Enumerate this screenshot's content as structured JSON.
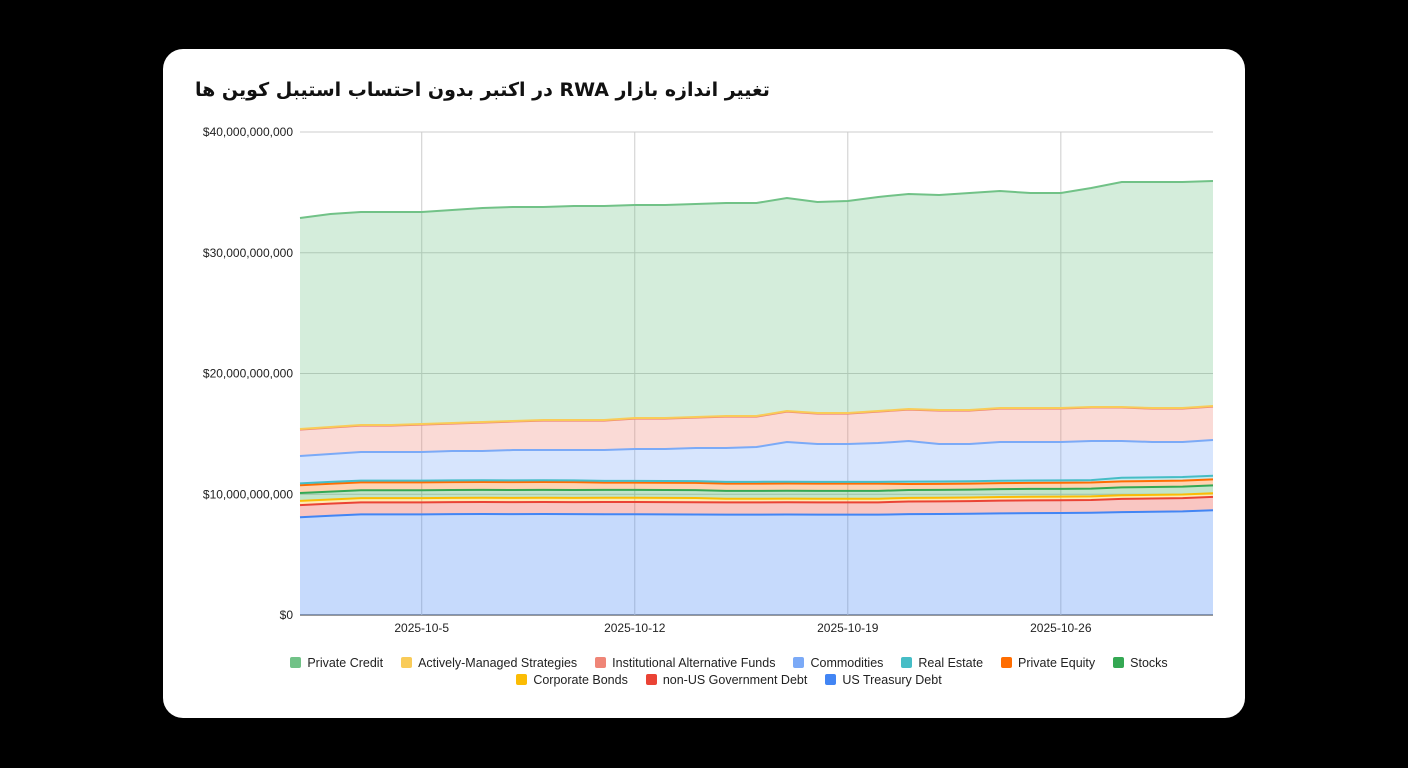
{
  "chart_data": {
    "type": "area",
    "stacked": true,
    "title": "تغییر اندازه بازار RWA در اکتبر بدون احتساب استیبل کوین ها",
    "xlabel": "",
    "ylabel": "",
    "ylim": [
      0,
      40000000000
    ],
    "yticks": [
      {
        "value": 0,
        "label": "$0"
      },
      {
        "value": 10000000000,
        "label": "$10,000,000,000"
      },
      {
        "value": 20000000000,
        "label": "$20,000,000,000"
      },
      {
        "value": 30000000000,
        "label": "$30,000,000,000"
      },
      {
        "value": 40000000000,
        "label": "$40,000,000,000"
      }
    ],
    "xticks": [
      "2025-10-5",
      "2025-10-12",
      "2025-10-19",
      "2025-10-26"
    ],
    "grid": true,
    "legend_position": "bottom",
    "categories": [
      "2025-10-1",
      "2025-10-2",
      "2025-10-3",
      "2025-10-4",
      "2025-10-5",
      "2025-10-6",
      "2025-10-7",
      "2025-10-8",
      "2025-10-9",
      "2025-10-10",
      "2025-10-11",
      "2025-10-12",
      "2025-10-13",
      "2025-10-14",
      "2025-10-15",
      "2025-10-16",
      "2025-10-17",
      "2025-10-18",
      "2025-10-19",
      "2025-10-20",
      "2025-10-21",
      "2025-10-22",
      "2025-10-23",
      "2025-10-24",
      "2025-10-25",
      "2025-10-26",
      "2025-10-27",
      "2025-10-28",
      "2025-10-29",
      "2025-10-30",
      "2025-10-31"
    ],
    "series": [
      {
        "name": "US Treasury Debt",
        "color": "#4285f4",
        "values": [
          8100000000.0,
          8220000000.0,
          8330000000.0,
          8330000000.0,
          8330000000.0,
          8350000000.0,
          8360000000.0,
          8350000000.0,
          8360000000.0,
          8350000000.0,
          8340000000.0,
          8340000000.0,
          8330000000.0,
          8320000000.0,
          8310000000.0,
          8310000000.0,
          8320000000.0,
          8310000000.0,
          8310000000.0,
          8310000000.0,
          8350000000.0,
          8360000000.0,
          8380000000.0,
          8420000000.0,
          8440000000.0,
          8450000000.0,
          8470000000.0,
          8520000000.0,
          8550000000.0,
          8580000000.0,
          8680000000.0
        ]
      },
      {
        "name": "non-US Government Debt",
        "color": "#ea4335",
        "values": [
          1000000000.0,
          1000000000.0,
          1000000000.0,
          1000000000.0,
          1000000000.0,
          1000000000.0,
          1000000000.0,
          1000000000.0,
          1000000000.0,
          1000000000.0,
          1020000000.0,
          1020000000.0,
          1020000000.0,
          1020000000.0,
          1020000000.0,
          1020000000.0,
          1020000000.0,
          1020000000.0,
          1020000000.0,
          1020000000.0,
          1050000000.0,
          1050000000.0,
          1050000000.0,
          1050000000.0,
          1050000000.0,
          1050000000.0,
          1050000000.0,
          1100000000.0,
          1100000000.0,
          1100000000.0,
          1100000000.0
        ]
      },
      {
        "name": "Corporate Bonds",
        "color": "#fbbc04",
        "values": [
          350000000.0,
          350000000.0,
          350000000.0,
          350000000.0,
          350000000.0,
          350000000.0,
          350000000.0,
          350000000.0,
          350000000.0,
          350000000.0,
          350000000.0,
          350000000.0,
          350000000.0,
          350000000.0,
          300000000.0,
          300000000.0,
          300000000.0,
          300000000.0,
          300000000.0,
          300000000.0,
          300000000.0,
          300000000.0,
          300000000.0,
          300000000.0,
          300000000.0,
          300000000.0,
          300000000.0,
          300000000.0,
          300000000.0,
          300000000.0,
          300000000.0
        ]
      },
      {
        "name": "Stocks",
        "color": "#34a853",
        "values": [
          650000000.0,
          650000000.0,
          650000000.0,
          650000000.0,
          650000000.0,
          650000000.0,
          650000000.0,
          650000000.0,
          650000000.0,
          650000000.0,
          650000000.0,
          650000000.0,
          650000000.0,
          650000000.0,
          650000000.0,
          650000000.0,
          650000000.0,
          650000000.0,
          650000000.0,
          650000000.0,
          650000000.0,
          650000000.0,
          650000000.0,
          650000000.0,
          650000000.0,
          650000000.0,
          650000000.0,
          650000000.0,
          650000000.0,
          650000000.0,
          650000000.0
        ]
      },
      {
        "name": "Private Equity",
        "color": "#ff6d01",
        "values": [
          650000000.0,
          650000000.0,
          650000000.0,
          650000000.0,
          650000000.0,
          650000000.0,
          650000000.0,
          650000000.0,
          650000000.0,
          650000000.0,
          600000000.0,
          600000000.0,
          600000000.0,
          600000000.0,
          600000000.0,
          600000000.0,
          600000000.0,
          600000000.0,
          600000000.0,
          600000000.0,
          500000000.0,
          500000000.0,
          500000000.0,
          500000000.0,
          500000000.0,
          500000000.0,
          500000000.0,
          500000000.0,
          500000000.0,
          500000000.0,
          500000000.0
        ]
      },
      {
        "name": "Real Estate",
        "color": "#46bdc6",
        "values": [
          150000000.0,
          150000000.0,
          150000000.0,
          150000000.0,
          150000000.0,
          150000000.0,
          150000000.0,
          150000000.0,
          150000000.0,
          150000000.0,
          150000000.0,
          150000000.0,
          150000000.0,
          150000000.0,
          150000000.0,
          150000000.0,
          150000000.0,
          150000000.0,
          150000000.0,
          150000000.0,
          200000000.0,
          200000000.0,
          200000000.0,
          200000000.0,
          200000000.0,
          200000000.0,
          200000000.0,
          300000000.0,
          300000000.0,
          300000000.0,
          300000000.0
        ]
      },
      {
        "name": "Commodities",
        "color": "#7baaf7",
        "values": [
          2270000000.0,
          2310000000.0,
          2370000000.0,
          2370000000.0,
          2370000000.0,
          2430000000.0,
          2420000000.0,
          2510000000.0,
          2500000000.0,
          2510000000.0,
          2550000000.0,
          2640000000.0,
          2650000000.0,
          2740000000.0,
          2800000000.0,
          2880000000.0,
          3290000000.0,
          3130000000.0,
          3130000000.0,
          3210000000.0,
          3360000000.0,
          3100000000.0,
          3080000000.0,
          3210000000.0,
          3190000000.0,
          3180000000.0,
          3240000000.0,
          3040000000.0,
          2930000000.0,
          2900000000.0,
          2960000000.0
        ]
      },
      {
        "name": "Institutional Alternative Funds",
        "color": "#ef8577",
        "values": [
          2180000000.0,
          2190000000.0,
          2180000000.0,
          2180000000.0,
          2270000000.0,
          2270000000.0,
          2350000000.0,
          2360000000.0,
          2440000000.0,
          2440000000.0,
          2440000000.0,
          2510000000.0,
          2510000000.0,
          2520000000.0,
          2600000000.0,
          2520000000.0,
          2510000000.0,
          2520000000.0,
          2520000000.0,
          2600000000.0,
          2600000000.0,
          2770000000.0,
          2770000000.0,
          2760000000.0,
          2760000000.0,
          2760000000.0,
          2770000000.0,
          2770000000.0,
          2760000000.0,
          2760000000.0,
          2770000000.0
        ]
      },
      {
        "name": "Actively-Managed Strategies",
        "color": "#f9cb58",
        "values": [
          50000000.0,
          50000000.0,
          50000000.0,
          50000000.0,
          50000000.0,
          50000000.0,
          50000000.0,
          50000000.0,
          50000000.0,
          50000000.0,
          50000000.0,
          50000000.0,
          50000000.0,
          50000000.0,
          50000000.0,
          50000000.0,
          50000000.0,
          50000000.0,
          50000000.0,
          50000000.0,
          50000000.0,
          50000000.0,
          50000000.0,
          50000000.0,
          50000000.0,
          50000000.0,
          50000000.0,
          50000000.0,
          50000000.0,
          50000000.0,
          50000000.0
        ]
      },
      {
        "name": "Private Credit",
        "color": "#71c287",
        "values": [
          17480000000.0,
          17640000000.0,
          17640000000.0,
          17640000000.0,
          17550000000.0,
          17640000000.0,
          17730000000.0,
          17720000000.0,
          17640000000.0,
          17720000000.0,
          17720000000.0,
          17640000000.0,
          17640000000.0,
          17640000000.0,
          17640000000.0,
          17640000000.0,
          17640000000.0,
          17470000000.0,
          17560000000.0,
          17730000000.0,
          17810000000.0,
          17800000000.0,
          17970000000.0,
          17970000000.0,
          17810000000.0,
          17810000000.0,
          18130000000.0,
          18630000000.0,
          18720000000.0,
          18720000000.0,
          18630000000.0
        ]
      }
    ],
    "legend_rows": [
      [
        "Private Credit",
        "Actively-Managed Strategies",
        "Institutional Alternative Funds",
        "Commodities",
        "Real Estate",
        "Private Equity",
        "Stocks"
      ],
      [
        "Corporate Bonds",
        "non-US Government Debt",
        "US Treasury Debt"
      ]
    ]
  }
}
